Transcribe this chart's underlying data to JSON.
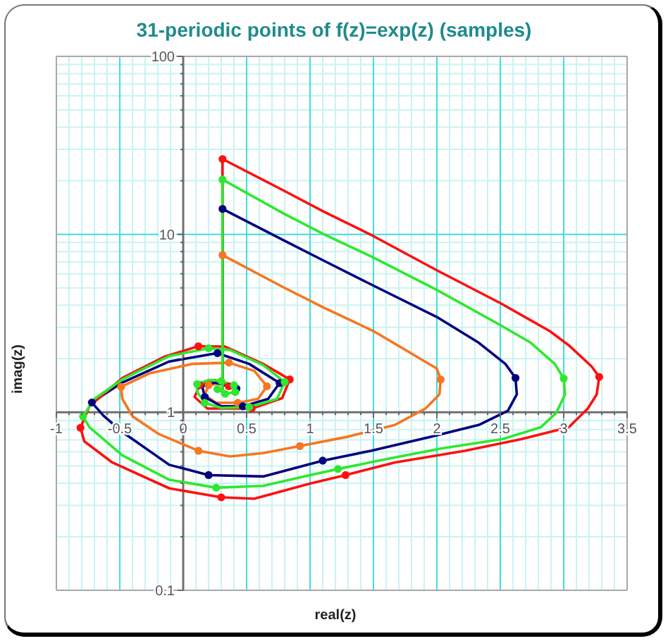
{
  "chart_data": {
    "type": "line",
    "title": "31-periodic points of f(z)=exp(z) (samples)",
    "xlabel": "real(z)",
    "ylabel": "imag(z)",
    "log": "y",
    "grid": true,
    "xlim": [
      -1,
      3.5
    ],
    "xticks": [
      -1,
      {
        "value": -0.9,
        "label": null
      },
      {
        "value": -0.8,
        "label": null
      },
      {
        "value": -0.7,
        "label": null
      },
      {
        "value": -0.6,
        "label": null
      },
      -0.5,
      {
        "value": -0.4,
        "label": null
      },
      {
        "value": -0.3,
        "label": null
      },
      {
        "value": -0.2,
        "label": null
      },
      {
        "value": -0.1,
        "label": null
      },
      0,
      {
        "value": 0.1,
        "label": null
      },
      {
        "value": 0.2,
        "label": null
      },
      {
        "value": 0.3,
        "label": null
      },
      {
        "value": 0.4,
        "label": null
      },
      0.5,
      {
        "value": 0.6,
        "label": null
      },
      {
        "value": 0.7,
        "label": null
      },
      {
        "value": 0.8,
        "label": null
      },
      {
        "value": 0.9,
        "label": null
      },
      1,
      {
        "value": 1.1,
        "label": null
      },
      {
        "value": 1.2,
        "label": null
      },
      {
        "value": 1.3,
        "label": null
      },
      {
        "value": 1.4,
        "label": null
      },
      1.5,
      {
        "value": 1.6,
        "label": null
      },
      {
        "value": 1.7,
        "label": null
      },
      {
        "value": 1.8,
        "label": null
      },
      {
        "value": 1.9,
        "label": null
      },
      2,
      {
        "value": 2.1,
        "label": null
      },
      {
        "value": 2.2,
        "label": null
      },
      {
        "value": 2.3,
        "label": null
      },
      {
        "value": 2.4,
        "label": null
      },
      2.5,
      {
        "value": 2.6,
        "label": null
      },
      {
        "value": 2.7,
        "label": null
      },
      {
        "value": 2.8,
        "label": null
      },
      {
        "value": 2.9,
        "label": null
      },
      3,
      {
        "value": 3.1,
        "label": null
      },
      {
        "value": 3.2,
        "label": null
      },
      {
        "value": 3.3,
        "label": null
      },
      {
        "value": 3.4,
        "label": null
      },
      3.5
    ],
    "ylim": [
      0.1,
      100
    ],
    "yticks": [
      0.1,
      {
        "value": 0.2,
        "label": null
      },
      {
        "value": 0.3,
        "label": null
      },
      {
        "value": 0.4,
        "label": null
      },
      {
        "value": 0.5,
        "label": null
      },
      {
        "value": 0.6,
        "label": null
      },
      {
        "value": 0.7,
        "label": null
      },
      {
        "value": 0.8,
        "label": null
      },
      {
        "value": 0.9,
        "label": null
      },
      1,
      {
        "value": 2,
        "label": null
      },
      {
        "value": 3,
        "label": null
      },
      {
        "value": 4,
        "label": null
      },
      {
        "value": 5,
        "label": null
      },
      {
        "value": 6,
        "label": null
      },
      {
        "value": 7,
        "label": null
      },
      {
        "value": 8,
        "label": null
      },
      {
        "value": 9,
        "label": null
      },
      10,
      {
        "value": 20,
        "label": null
      },
      {
        "value": 30,
        "label": null
      },
      {
        "value": 40,
        "label": null
      },
      {
        "value": 50,
        "label": null
      },
      {
        "value": 60,
        "label": null
      },
      {
        "value": 70,
        "label": null
      },
      {
        "value": 80,
        "label": null
      },
      {
        "value": 90,
        "label": null
      },
      100
    ],
    "series": [
      {
        "marker": "none",
        "color": "#f7761f",
        "x": [
          0.31,
          0.31,
          0.8,
          1.11,
          1.5,
          1.78,
          2.0,
          2.03,
          2.02,
          1.91,
          1.67,
          1.3,
          0.92,
          0.63,
          0.37,
          0.12,
          -0.19,
          -0.4,
          -0.48,
          -0.49,
          -0.26,
          0.07,
          0.36,
          0.56,
          0.66,
          0.59,
          0.43,
          0.26,
          0.17,
          0.2,
          0.3,
          0.36
        ],
        "values": [
          1.35,
          7.64,
          5.0,
          3.87,
          2.86,
          2.18,
          1.76,
          1.53,
          1.26,
          1.05,
          0.85,
          0.73,
          0.646,
          0.59,
          0.565,
          0.608,
          0.753,
          0.95,
          1.19,
          1.39,
          1.66,
          1.87,
          1.9,
          1.71,
          1.4,
          1.19,
          1.13,
          1.13,
          1.25,
          1.42,
          1.46,
          1.38
        ]
      },
      {
        "type": "scatter",
        "marker": "circle",
        "color": "#f7761f",
        "x": [
          0.31,
          2.03,
          0.92,
          0.12,
          -0.49,
          0.36,
          0.66,
          0.43,
          0.2
        ],
        "values": [
          7.64,
          1.53,
          0.646,
          0.608,
          1.39,
          1.9,
          1.4,
          1.13,
          1.42
        ]
      },
      {
        "marker": "none",
        "color": "#000080",
        "x": [
          0.31,
          0.31,
          0.8,
          1.11,
          1.5,
          2.0,
          2.33,
          2.54,
          2.62,
          2.63,
          2.56,
          2.33,
          1.96,
          1.48,
          1.1,
          0.63,
          0.2,
          -0.11,
          -0.48,
          -0.63,
          -0.72,
          -0.48,
          -0.11,
          0.27,
          0.52,
          0.76,
          0.67,
          0.47,
          0.3,
          0.17,
          0.15,
          0.25,
          0.42
        ],
        "values": [
          1.35,
          13.9,
          9.2,
          7.1,
          5.15,
          3.43,
          2.46,
          1.87,
          1.56,
          1.26,
          1.02,
          0.849,
          0.73,
          0.608,
          0.535,
          0.436,
          0.444,
          0.507,
          0.775,
          0.96,
          1.136,
          1.47,
          1.93,
          2.15,
          1.87,
          1.46,
          1.19,
          1.08,
          1.08,
          1.22,
          1.4,
          1.47,
          1.36
        ]
      },
      {
        "type": "scatter",
        "marker": "circle",
        "color": "#000080",
        "x": [
          0.31,
          2.62,
          1.1,
          0.2,
          -0.72,
          0.27,
          0.76,
          0.47,
          0.17,
          0.42
        ],
        "values": [
          13.9,
          1.56,
          0.535,
          0.444,
          1.136,
          2.15,
          1.46,
          1.08,
          1.22,
          1.36
        ]
      },
      {
        "marker": "none",
        "color": "#ff1010",
        "x": [
          0.31,
          0.31,
          0.8,
          1.11,
          1.5,
          2.0,
          2.5,
          2.89,
          3.04,
          3.22,
          3.28,
          3.26,
          3.19,
          3.04,
          2.67,
          2.22,
          1.67,
          1.28,
          1.0,
          0.56,
          0.3,
          -0.11,
          -0.56,
          -0.78,
          -0.81,
          -0.74,
          -0.48,
          -0.15,
          0.12,
          0.33,
          0.63,
          0.84,
          0.78,
          0.54,
          0.19,
          0.09,
          0.13,
          0.25,
          0.36
        ],
        "values": [
          1.35,
          26.5,
          17.5,
          13.4,
          9.77,
          6.28,
          4.11,
          2.86,
          2.38,
          1.81,
          1.58,
          1.26,
          1.05,
          0.825,
          0.708,
          0.608,
          0.523,
          0.444,
          0.398,
          0.327,
          0.333,
          0.374,
          0.523,
          0.687,
          0.819,
          1.08,
          1.56,
          2.05,
          2.35,
          2.34,
          1.87,
          1.53,
          1.2,
          1.05,
          1.05,
          1.22,
          1.42,
          1.52,
          1.4
        ]
      },
      {
        "type": "scatter",
        "marker": "circle",
        "color": "#ff1010",
        "x": [
          0.31,
          3.28,
          1.28,
          0.3,
          -0.81,
          0.12,
          0.84,
          0.54,
          0.13,
          0.36
        ],
        "values": [
          26.5,
          1.58,
          0.444,
          0.333,
          0.819,
          2.35,
          1.53,
          1.05,
          1.42,
          1.4
        ]
      },
      {
        "marker": "none",
        "color": "#2ee82e",
        "x": [
          0.31,
          0.31,
          0.8,
          1.11,
          1.5,
          2.0,
          2.5,
          2.74,
          2.93,
          3.0,
          3.01,
          2.94,
          2.82,
          2.52,
          2.04,
          1.56,
          1.22,
          1.0,
          0.63,
          0.26,
          -0.11,
          -0.48,
          -0.74,
          -0.79,
          -0.7,
          -0.48,
          -0.11,
          0.2,
          0.37,
          0.63,
          0.8,
          0.74,
          0.52,
          0.3,
          0.17,
          0.11,
          0.11,
          0.2,
          0.3,
          0.4,
          0.41,
          0.33,
          0.27
        ],
        "values": [
          1.35,
          20.3,
          13.0,
          10.0,
          7.41,
          4.87,
          3.09,
          2.46,
          1.87,
          1.55,
          1.26,
          0.99,
          0.825,
          0.708,
          0.627,
          0.539,
          0.48,
          0.444,
          0.386,
          0.377,
          0.418,
          0.573,
          0.825,
          0.947,
          1.19,
          1.53,
          2.07,
          2.29,
          2.24,
          1.84,
          1.48,
          1.19,
          1.07,
          1.06,
          1.13,
          1.3,
          1.44,
          1.52,
          1.5,
          1.42,
          1.3,
          1.27,
          1.35
        ]
      },
      {
        "type": "scatter",
        "marker": "circle",
        "color": "#2ee82e",
        "x": [
          0.31,
          3.0,
          1.22,
          0.26,
          -0.79,
          0.2,
          0.8,
          0.52,
          0.17,
          0.11,
          0.3,
          0.4,
          0.41,
          0.33,
          0.27
        ],
        "values": [
          20.3,
          1.55,
          0.48,
          0.377,
          0.947,
          2.29,
          1.48,
          1.07,
          1.13,
          1.44,
          1.5,
          1.42,
          1.3,
          1.27,
          1.35
        ]
      }
    ]
  }
}
